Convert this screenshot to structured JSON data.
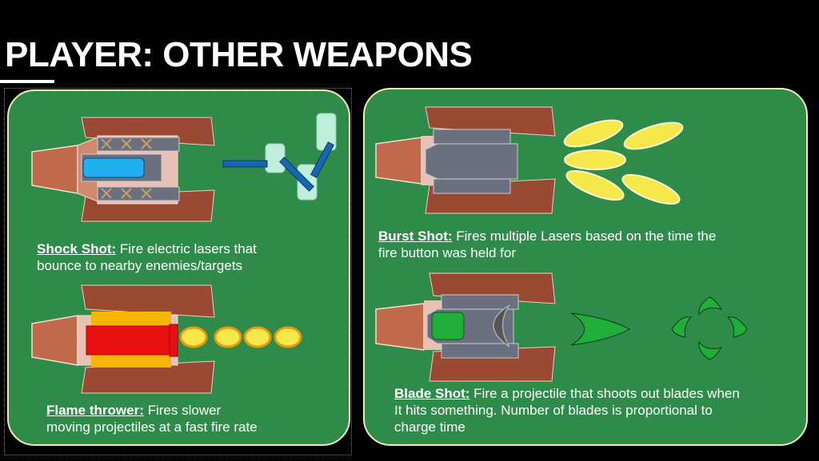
{
  "slide": {
    "title": "PLAYER: OTHER WEAPONS",
    "colors": {
      "background": "#000000",
      "panel": "#2e8b4a",
      "panel_border": "#f2ecb0",
      "ship_body": "#c06a4b",
      "ship_wing": "#9a4a33",
      "projectile_yellow": "#f5e84a",
      "blade_green": "#1fae3a"
    }
  },
  "weapons": {
    "shock": {
      "name": "Shock Shot:",
      "desc_line1": " Fire electric lasers that",
      "desc_line2": "bounce to nearby enemies/targets"
    },
    "flame": {
      "name": "Flame thrower:",
      "desc_line1": " Fires slower",
      "desc_line2": "moving projectiles at a fast fire rate"
    },
    "burst": {
      "name": "Burst Shot:",
      "desc_line1": " Fires multiple Lasers based on the time the",
      "desc_line2": "fire button was held for"
    },
    "blade": {
      "name": "Blade Shot:",
      "desc_line1": " Fire a projectile that shoots out blades when",
      "desc_line2": "It hits something. Number of blades is proportional to",
      "desc_line3": "charge time"
    }
  }
}
